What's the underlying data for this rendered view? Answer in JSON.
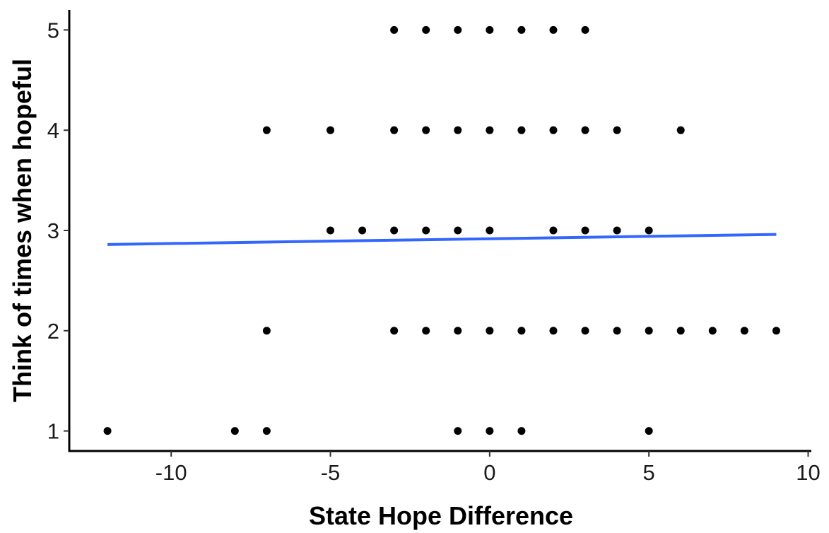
{
  "chart_data": {
    "type": "scatter",
    "xlabel": "State Hope Difference",
    "ylabel": "Think of times when hopeful",
    "xlim": [
      -13.2,
      10.1
    ],
    "ylim": [
      0.8,
      5.2
    ],
    "x_ticks": [
      -10,
      -5,
      0,
      5,
      10
    ],
    "x_tick_labels": [
      "-10",
      "-5",
      "0",
      "5",
      "10"
    ],
    "y_ticks": [
      1,
      2,
      3,
      4,
      5
    ],
    "y_tick_labels": [
      "1",
      "2",
      "3",
      "4",
      "5"
    ],
    "grid": false,
    "legend": "none",
    "points": [
      {
        "x": -3,
        "y": 5
      },
      {
        "x": -2,
        "y": 5
      },
      {
        "x": -1,
        "y": 5
      },
      {
        "x": 0,
        "y": 5
      },
      {
        "x": 1,
        "y": 5
      },
      {
        "x": 2,
        "y": 5
      },
      {
        "x": 3,
        "y": 5
      },
      {
        "x": -7,
        "y": 4
      },
      {
        "x": -5,
        "y": 4
      },
      {
        "x": -3,
        "y": 4
      },
      {
        "x": -2,
        "y": 4
      },
      {
        "x": -1,
        "y": 4
      },
      {
        "x": 0,
        "y": 4
      },
      {
        "x": 1,
        "y": 4
      },
      {
        "x": 2,
        "y": 4
      },
      {
        "x": 3,
        "y": 4
      },
      {
        "x": 4,
        "y": 4
      },
      {
        "x": 6,
        "y": 4
      },
      {
        "x": -5,
        "y": 3
      },
      {
        "x": -4,
        "y": 3
      },
      {
        "x": -3,
        "y": 3
      },
      {
        "x": -2,
        "y": 3
      },
      {
        "x": -1,
        "y": 3
      },
      {
        "x": 0,
        "y": 3
      },
      {
        "x": 2,
        "y": 3
      },
      {
        "x": 3,
        "y": 3
      },
      {
        "x": 4,
        "y": 3
      },
      {
        "x": 5,
        "y": 3
      },
      {
        "x": -7,
        "y": 2
      },
      {
        "x": -3,
        "y": 2
      },
      {
        "x": -2,
        "y": 2
      },
      {
        "x": -1,
        "y": 2
      },
      {
        "x": 0,
        "y": 2
      },
      {
        "x": 1,
        "y": 2
      },
      {
        "x": 2,
        "y": 2
      },
      {
        "x": 3,
        "y": 2
      },
      {
        "x": 4,
        "y": 2
      },
      {
        "x": 5,
        "y": 2
      },
      {
        "x": 6,
        "y": 2
      },
      {
        "x": 7,
        "y": 2
      },
      {
        "x": 8,
        "y": 2
      },
      {
        "x": 9,
        "y": 2
      },
      {
        "x": -12,
        "y": 1
      },
      {
        "x": -8,
        "y": 1
      },
      {
        "x": -7,
        "y": 1
      },
      {
        "x": -1,
        "y": 1
      },
      {
        "x": 0,
        "y": 1
      },
      {
        "x": 1,
        "y": 1
      },
      {
        "x": 5,
        "y": 1
      }
    ],
    "trend_line": {
      "x": [
        -12,
        9
      ],
      "y": [
        2.86,
        2.96
      ],
      "color": "#3366FF"
    },
    "point_color": "#000000",
    "axis_color": "#000000"
  }
}
